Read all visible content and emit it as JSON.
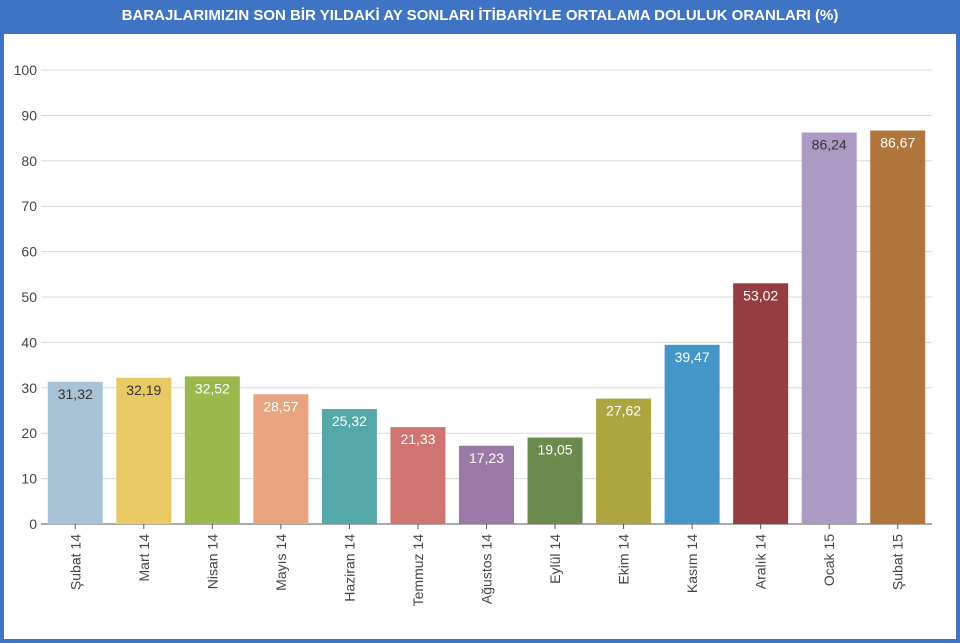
{
  "chart_data": {
    "type": "bar",
    "title": "BARAJLARIMIZIN SON BİR YILDAKİ AY SONLARI İTİBARİYLE ORTALAMA DOLULUK ORANLARI (%)",
    "categories": [
      "Şubat 14",
      "Mart 14",
      "Nisan 14",
      "Mayıs 14",
      "Haziran 14",
      "Temmuz 14",
      "Ağustos 14",
      "Eylül 14",
      "Ekim 14",
      "Kasım 14",
      "Aralık 14",
      "Ocak 15",
      "Şubat 15"
    ],
    "values": [
      31.32,
      32.19,
      32.52,
      28.57,
      25.32,
      21.33,
      17.23,
      19.05,
      27.62,
      39.47,
      53.02,
      86.24,
      86.67
    ],
    "value_labels": [
      "31,32",
      "32,19",
      "32,52",
      "28,57",
      "25,32",
      "21,33",
      "17,23",
      "19,05",
      "27,62",
      "39,47",
      "53,02",
      "86,24",
      "86,67"
    ],
    "colors": [
      "#a9c3d6",
      "#e8c964",
      "#9ab84b",
      "#e8a47e",
      "#55a8a8",
      "#cf7470",
      "#9b79a6",
      "#6a8a4e",
      "#aca540",
      "#4496c8",
      "#943e42",
      "#aa9ac4",
      "#b0753a"
    ],
    "label_colors": [
      "#333333",
      "#333333",
      "#ffffff",
      "#ffffff",
      "#ffffff",
      "#ffffff",
      "#ffffff",
      "#ffffff",
      "#ffffff",
      "#ffffff",
      "#ffffff",
      "#333333",
      "#ffffff"
    ],
    "ylim": [
      0,
      100
    ],
    "yticks": [
      0,
      10,
      20,
      30,
      40,
      50,
      60,
      70,
      80,
      90,
      100
    ],
    "xlabel": "",
    "ylabel": "",
    "grid": true,
    "legend": "none"
  }
}
